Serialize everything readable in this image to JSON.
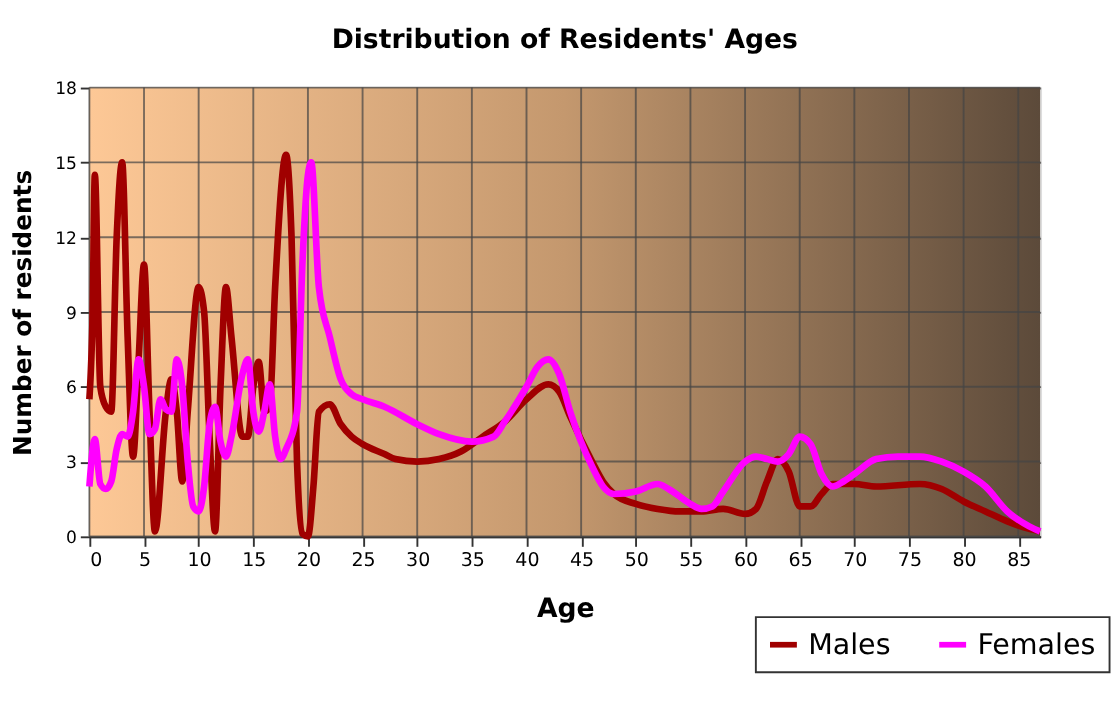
{
  "chart_data": {
    "type": "line",
    "title": "Distribution of Residents' Ages",
    "xlabel": "Age",
    "ylabel": "Number of residents",
    "xlim": [
      0,
      87
    ],
    "xticks": [
      0,
      5,
      10,
      15,
      20,
      25,
      30,
      35,
      40,
      45,
      50,
      55,
      60,
      65,
      70,
      75,
      80,
      85
    ],
    "ylim": [
      0,
      18
    ],
    "yticks": [
      0,
      3,
      6,
      9,
      12,
      15,
      18
    ],
    "grid": true,
    "legend": "bottom right",
    "series": [
      {
        "name": "Males",
        "color": "#a00000",
        "x": [
          0,
          0.3,
          0.5,
          1,
          1.5,
          2,
          2.5,
          3,
          3.5,
          4,
          4.5,
          5,
          5.5,
          6,
          7,
          7.5,
          8,
          8.5,
          9,
          10,
          10.5,
          11,
          11.5,
          12,
          12.5,
          13,
          14,
          14.5,
          15,
          15.5,
          16,
          16.5,
          17,
          18,
          18.5,
          19,
          19.5,
          20,
          20.5,
          21,
          22,
          23,
          24,
          25,
          27,
          28,
          30,
          32,
          34,
          36,
          38,
          40,
          42,
          43,
          44,
          46,
          47,
          48,
          50,
          52,
          54,
          56,
          58,
          60,
          61,
          62,
          63,
          64,
          65,
          66,
          67,
          68,
          70,
          72,
          76,
          78,
          80,
          82,
          84,
          86,
          87
        ],
        "values": [
          5.5,
          9,
          14.5,
          6,
          5.2,
          5,
          12,
          15,
          8,
          3.2,
          7,
          10.9,
          5,
          0.2,
          5,
          6.3,
          5,
          2.2,
          5,
          10,
          9,
          4,
          0.2,
          6,
          10,
          8,
          4,
          4,
          6,
          7,
          5,
          5.2,
          10,
          15.3,
          12,
          3,
          0.1,
          0,
          2,
          5,
          5.3,
          4.5,
          4,
          3.7,
          3.3,
          3.1,
          3,
          3.1,
          3.4,
          4,
          4.6,
          5.5,
          6.1,
          5.8,
          4.8,
          3,
          2.2,
          1.7,
          1.3,
          1.1,
          1,
          1,
          1.1,
          0.9,
          1.1,
          2.2,
          3.1,
          2.6,
          1.2,
          1.2,
          1.7,
          2.1,
          2.1,
          2,
          2.1,
          1.9,
          1.4,
          1,
          0.6,
          0.3,
          0.2
        ]
      },
      {
        "name": "Females",
        "color": "#ff00ff",
        "x": [
          0,
          0.5,
          1,
          1.5,
          2,
          2.5,
          3,
          3.5,
          4,
          4.5,
          5,
          5.5,
          6,
          6.5,
          7,
          7.5,
          8,
          8.5,
          9,
          9.5,
          10,
          10.5,
          11,
          11.5,
          12,
          12.5,
          13,
          14,
          14.5,
          15,
          15.5,
          16,
          16.5,
          17,
          17.5,
          18,
          19,
          19.5,
          20,
          20.3,
          21,
          22,
          23,
          24,
          25,
          27,
          30,
          32,
          35,
          37,
          38,
          40,
          41,
          42,
          43,
          44,
          46,
          47,
          48,
          50,
          52,
          53,
          55,
          56,
          57,
          58,
          60,
          61,
          62,
          63,
          64,
          65,
          66,
          67,
          68,
          69,
          70,
          72,
          74,
          76,
          78,
          80,
          82,
          84,
          86,
          87
        ],
        "values": [
          2,
          3.9,
          2.1,
          1.9,
          2.2,
          3.5,
          4.1,
          4,
          5,
          7.1,
          6,
          4.1,
          4.3,
          5.5,
          5.1,
          5,
          7.1,
          6,
          3,
          1.2,
          1,
          2,
          4.5,
          5.2,
          3.8,
          3.2,
          4,
          6.5,
          7.1,
          5,
          4.2,
          5,
          6.1,
          4,
          3.1,
          3.5,
          5,
          11,
          14.5,
          15,
          10,
          8,
          6.3,
          5.7,
          5.5,
          5.2,
          4.5,
          4.1,
          3.8,
          4,
          4.6,
          6,
          6.8,
          7.1,
          6.5,
          5,
          2.8,
          2,
          1.7,
          1.8,
          2.1,
          1.9,
          1.3,
          1.1,
          1.2,
          1.8,
          3,
          3.2,
          3.1,
          3,
          3.3,
          4,
          3.7,
          2.5,
          2,
          2.2,
          2.5,
          3.1,
          3.2,
          3.2,
          3,
          2.6,
          2,
          1,
          0.4,
          0.2
        ]
      }
    ]
  }
}
